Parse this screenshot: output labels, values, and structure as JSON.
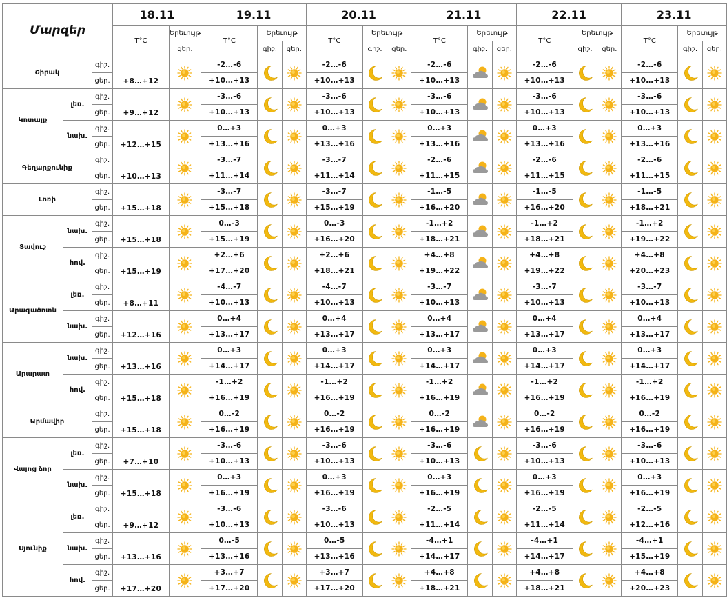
{
  "header": {
    "regions_title": "Մարզեր",
    "days": [
      "18.11",
      "19.11",
      "20.11",
      "21.11",
      "22.11",
      "23.11"
    ],
    "temp_label": "T°C",
    "phenomena_label": "Երեւույթ",
    "night_label": "գիշ.",
    "day_label": "ցեր."
  },
  "icon_names": {
    "sun": "sun-icon",
    "moon": "moon-icon",
    "cloud_sun": "partly-cloudy-icon"
  },
  "colors": {
    "sun": "#f5b319",
    "moon": "#f2b90f",
    "cloud": "#9a9a9a",
    "border": "#8a8a8a"
  },
  "groups": [
    {
      "region": "Շիրակ",
      "blocks": [
        {
          "sub": "",
          "night": [
            "",
            "-2…-6",
            "-2…-6",
            "-2…-6",
            "-2…-6",
            "-2…-6"
          ],
          "day": [
            "+8…+12",
            "+10…+13",
            "+10…+13",
            "+10…+13",
            "+10…+13",
            "+10…+13"
          ],
          "icons": [
            "moon",
            "moon",
            "cloud_sun",
            "moon",
            "moon"
          ]
        }
      ]
    },
    {
      "region": "Կոտայք",
      "blocks": [
        {
          "sub": "լեռ.",
          "night": [
            "",
            "-3…-6",
            "-3…-6",
            "-3…-6",
            "-3…-6",
            "-3…-6"
          ],
          "day": [
            "+9…+12",
            "+10…+13",
            "+10…+13",
            "+10…+13",
            "+10…+13",
            "+10…+13"
          ],
          "icons": [
            "moon",
            "moon",
            "cloud_sun",
            "moon",
            "moon"
          ]
        },
        {
          "sub": "նախ.",
          "night": [
            "",
            "0…+3",
            "0…+3",
            "0…+3",
            "0…+3",
            "0…+3"
          ],
          "day": [
            "+12…+15",
            "+13…+16",
            "+13…+16",
            "+13…+16",
            "+13…+16",
            "+13…+16"
          ],
          "icons": [
            "moon",
            "moon",
            "cloud_sun",
            "moon",
            "moon"
          ]
        }
      ]
    },
    {
      "region": "Գեղարքունիք",
      "blocks": [
        {
          "sub": "",
          "night": [
            "",
            "-3…-7",
            "-3…-7",
            "-2…-6",
            "-2…-6",
            "-2…-6"
          ],
          "day": [
            "+10…+13",
            "+11…+14",
            "+11…+14",
            "+11…+15",
            "+11…+15",
            "+11…+15"
          ],
          "icons": [
            "moon",
            "moon",
            "cloud_sun",
            "moon",
            "moon"
          ]
        }
      ]
    },
    {
      "region": "Լոռի",
      "blocks": [
        {
          "sub": "",
          "night": [
            "",
            "-3…-7",
            "-3…-7",
            "-1…-5",
            "-1…-5",
            "-1…-5"
          ],
          "day": [
            "+15…+18",
            "+15…+18",
            "+15…+19",
            "+16…+20",
            "+16…+20",
            "+18…+21"
          ],
          "icons": [
            "moon",
            "moon",
            "cloud_sun",
            "moon",
            "moon"
          ]
        }
      ]
    },
    {
      "region": "Տավուշ",
      "blocks": [
        {
          "sub": "նախ.",
          "night": [
            "",
            "0…-3",
            "0…-3",
            "-1…+2",
            "-1…+2",
            "-1…+2"
          ],
          "day": [
            "+15…+18",
            "+15…+19",
            "+16…+20",
            "+18…+21",
            "+18…+21",
            "+19…+22"
          ],
          "icons": [
            "moon",
            "moon",
            "cloud_sun",
            "moon",
            "moon"
          ]
        },
        {
          "sub": "հով.",
          "night": [
            "",
            "+2…+6",
            "+2…+6",
            "+4…+8",
            "+4…+8",
            "+4…+8"
          ],
          "day": [
            "+15…+19",
            "+17…+20",
            "+18…+21",
            "+19…+22",
            "+19…+22",
            "+20…+23"
          ],
          "icons": [
            "moon",
            "moon",
            "cloud_sun",
            "moon",
            "moon"
          ]
        }
      ]
    },
    {
      "region": "Արագածոտն",
      "blocks": [
        {
          "sub": "լեռ.",
          "night": [
            "",
            "-4…-7",
            "-4…-7",
            "-3…-7",
            "-3…-7",
            "-3…-7"
          ],
          "day": [
            "+8…+11",
            "+10…+13",
            "+10…+13",
            "+10…+13",
            "+10…+13",
            "+10…+13"
          ],
          "icons": [
            "moon",
            "moon",
            "cloud_sun",
            "moon",
            "moon"
          ]
        },
        {
          "sub": "նախ.",
          "night": [
            "",
            "0…+4",
            "0…+4",
            "0…+4",
            "0…+4",
            "0…+4"
          ],
          "day": [
            "+12…+16",
            "+13…+17",
            "+13…+17",
            "+13…+17",
            "+13…+17",
            "+13…+17"
          ],
          "icons": [
            "moon",
            "moon",
            "cloud_sun",
            "moon",
            "moon"
          ]
        }
      ]
    },
    {
      "region": "Արարատ",
      "blocks": [
        {
          "sub": "նախ.",
          "night": [
            "",
            "0…+3",
            "0…+3",
            "0…+3",
            "0…+3",
            "0…+3"
          ],
          "day": [
            "+13…+16",
            "+14…+17",
            "+14…+17",
            "+14…+17",
            "+14…+17",
            "+14…+17"
          ],
          "icons": [
            "moon",
            "moon",
            "cloud_sun",
            "moon",
            "moon"
          ]
        },
        {
          "sub": "հով.",
          "night": [
            "",
            "-1…+2",
            "-1…+2",
            "-1…+2",
            "-1…+2",
            "-1…+2"
          ],
          "day": [
            "+15…+18",
            "+16…+19",
            "+16…+19",
            "+16…+19",
            "+16…+19",
            "+16…+19"
          ],
          "icons": [
            "moon",
            "moon",
            "cloud_sun",
            "moon",
            "moon"
          ]
        }
      ]
    },
    {
      "region": "Արմավիր",
      "blocks": [
        {
          "sub": "",
          "night": [
            "",
            "0…-2",
            "0…-2",
            "0…-2",
            "0…-2",
            "0…-2"
          ],
          "day": [
            "+15…+18",
            "+16…+19",
            "+16…+19",
            "+16…+19",
            "+16…+19",
            "+16…+19"
          ],
          "icons": [
            "moon",
            "moon",
            "cloud_sun",
            "moon",
            "moon"
          ]
        }
      ]
    },
    {
      "region": "Վայոց ձոր",
      "blocks": [
        {
          "sub": "լեռ.",
          "night": [
            "",
            "-3…-6",
            "-3…-6",
            "-3…-6",
            "-3…-6",
            "-3…-6"
          ],
          "day": [
            "+7…+10",
            "+10…+13",
            "+10…+13",
            "+10…+13",
            "+10…+13",
            "+10…+13"
          ],
          "icons": [
            "moon",
            "moon",
            "moon",
            "moon",
            "moon"
          ]
        },
        {
          "sub": "նախ.",
          "night": [
            "",
            "0…+3",
            "0…+3",
            "0…+3",
            "0…+3",
            "0…+3"
          ],
          "day": [
            "+15…+18",
            "+16…+19",
            "+16…+19",
            "+16…+19",
            "+16…+19",
            "+16…+19"
          ],
          "icons": [
            "moon",
            "moon",
            "moon",
            "moon",
            "moon"
          ]
        }
      ]
    },
    {
      "region": "Սյունիք",
      "blocks": [
        {
          "sub": "լեռ.",
          "night": [
            "",
            "-3…-6",
            "-3…-6",
            "-2…-5",
            "-2…-5",
            "-2…-5"
          ],
          "day": [
            "+9…+12",
            "+10…+13",
            "+10…+13",
            "+11…+14",
            "+11…+14",
            "+12…+16"
          ],
          "icons": [
            "moon",
            "moon",
            "moon",
            "moon",
            "moon"
          ]
        },
        {
          "sub": "նախ.",
          "night": [
            "",
            "0…-5",
            "0…-5",
            "-4…+1",
            "-4…+1",
            "-4…+1"
          ],
          "day": [
            "+13…+16",
            "+13…+16",
            "+13…+16",
            "+14…+17",
            "+14…+17",
            "+15…+19"
          ],
          "icons": [
            "moon",
            "moon",
            "moon",
            "moon",
            "moon"
          ]
        },
        {
          "sub": "հով.",
          "night": [
            "",
            "+3…+7",
            "+3…+7",
            "+4…+8",
            "+4…+8",
            "+4…+8"
          ],
          "day": [
            "+17…+20",
            "+17…+20",
            "+17…+20",
            "+18…+21",
            "+18…+21",
            "+20…+23"
          ],
          "icons": [
            "moon",
            "moon",
            "moon",
            "moon",
            "moon"
          ]
        }
      ]
    }
  ]
}
